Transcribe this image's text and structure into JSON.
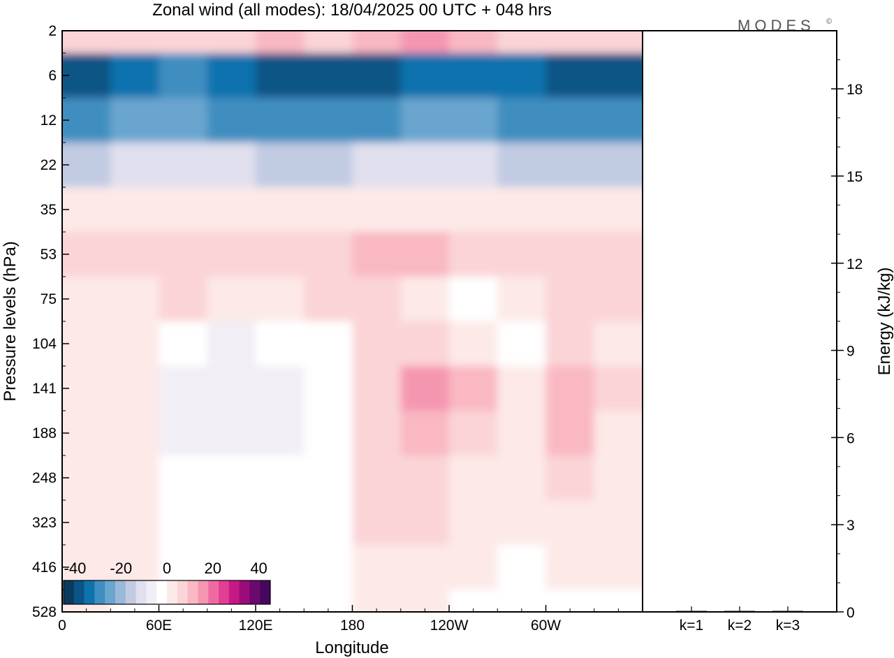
{
  "title": "Zonal wind (all modes):  18/04/2025  00 UTC  + 048 hrs",
  "logo": "MODES",
  "logo_mark": "©",
  "colors": {
    "scale": [
      "#0b3a5c",
      "#0a5585",
      "#1072ad",
      "#3f8ec0",
      "#6aa5cf",
      "#9ab8d8",
      "#c1cbe2",
      "#e0e0ee",
      "#f1eef5",
      "#ffffff",
      "#fde9e8",
      "#fbd4d7",
      "#f9b8c2",
      "#f596b0",
      "#ef6aa2",
      "#e03f95",
      "#c51a85",
      "#9c0b7a",
      "#6a0a6f",
      "#45085c"
    ]
  },
  "chart_data": [
    {
      "type": "heatmap",
      "title": "Zonal wind (all modes):  18/04/2025  00 UTC  + 048 hrs",
      "xlabel": "Longitude",
      "ylabel": "Pressure levels (hPa)",
      "x_ticks": [
        "0",
        "60E",
        "120E",
        "180",
        "120W",
        "60W"
      ],
      "y_ticks": [
        "2",
        "6",
        "12",
        "22",
        "35",
        "53",
        "75",
        "104",
        "141",
        "188",
        "248",
        "323",
        "416",
        "528"
      ],
      "colorbar": {
        "ticks": [
          "-40",
          "-20",
          "0",
          "20",
          "40"
        ],
        "range": [
          -45,
          45
        ],
        "levels": [
          -45,
          -40,
          -35,
          -30,
          -25,
          -20,
          -15,
          -10,
          -5,
          0,
          5,
          10,
          15,
          20,
          25,
          30,
          35,
          40,
          45
        ]
      },
      "x": [
        "0",
        "30E",
        "60E",
        "90E",
        "120E",
        "150E",
        "180",
        "150W",
        "120W",
        "90W",
        "60W",
        "30W"
      ],
      "y": [
        "2",
        "6",
        "12",
        "22",
        "35",
        "53",
        "75",
        "104",
        "141",
        "188",
        "248",
        "323",
        "416",
        "528"
      ],
      "z": [
        [
          8,
          8,
          9,
          10,
          12,
          10,
          14,
          16,
          12,
          10,
          9,
          8
        ],
        [
          -42,
          -36,
          -34,
          -36,
          -40,
          -42,
          -40,
          -38,
          -36,
          -38,
          -42,
          -40
        ],
        [
          -30,
          -28,
          -28,
          -30,
          -34,
          -34,
          -30,
          -28,
          -28,
          -30,
          -32,
          -30
        ],
        [
          -18,
          -14,
          -12,
          -14,
          -16,
          -16,
          -14,
          -14,
          -14,
          -15,
          -16,
          -16
        ],
        [
          5,
          4,
          4,
          3,
          4,
          5,
          4,
          4,
          5,
          5,
          4,
          5
        ],
        [
          8,
          7,
          9,
          8,
          8,
          9,
          14,
          11,
          7,
          9,
          7,
          8
        ],
        [
          5,
          4,
          6,
          5,
          4,
          6,
          8,
          5,
          0,
          5,
          6,
          6
        ],
        [
          3,
          1,
          -4,
          -5,
          -4,
          -3,
          8,
          10,
          5,
          -1,
          6,
          5
        ],
        [
          4,
          2,
          -6,
          -8,
          -6,
          -4,
          9,
          18,
          11,
          4,
          15,
          6
        ],
        [
          4,
          2,
          -5,
          -6,
          -5,
          -3,
          8,
          14,
          8,
          3,
          12,
          5
        ],
        [
          5,
          3,
          -3,
          -4,
          -4,
          -2,
          7,
          10,
          5,
          2,
          8,
          4
        ],
        [
          5,
          3,
          -2,
          -3,
          -3,
          -1,
          6,
          7,
          3,
          1,
          5,
          3
        ],
        [
          3,
          1,
          -1,
          -2,
          -2,
          0,
          5,
          5,
          2,
          0,
          2,
          1
        ],
        [
          1,
          0,
          -1,
          -1,
          -1,
          0,
          3,
          3,
          0,
          -1,
          -1,
          -2
        ]
      ]
    },
    {
      "type": "bar",
      "ylabel": "Energy (kJ/kg)",
      "categories": [
        "k=1",
        "k=2",
        "k=3"
      ],
      "values": [
        0.01,
        0.01,
        0.01
      ],
      "ylim": [
        0,
        20
      ],
      "y_ticks": [
        "0",
        "3",
        "6",
        "9",
        "12",
        "15",
        "18"
      ]
    }
  ]
}
